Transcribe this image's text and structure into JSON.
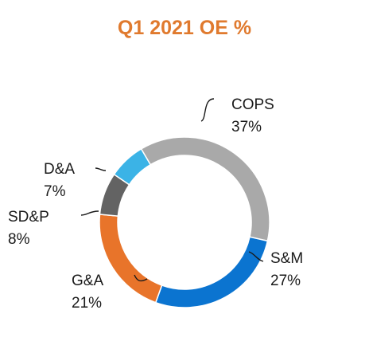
{
  "chart_data": {
    "type": "pie",
    "title": "Q1 2021 OE %",
    "slices": [
      {
        "label": "COPS",
        "value_label": "37%",
        "value": 37,
        "color": "#A9A9A9"
      },
      {
        "label": "S&M",
        "value_label": "27%",
        "value": 27,
        "color": "#0B74D0"
      },
      {
        "label": "G&A",
        "value_label": "21%",
        "value": 21,
        "color": "#E8742A"
      },
      {
        "label": "SD&P",
        "value_label": "8%",
        "value": 8,
        "color": "#636363"
      },
      {
        "label": "D&A",
        "value_label": "7%",
        "value": 7,
        "color": "#3BB3E6"
      }
    ],
    "legend": "none"
  }
}
